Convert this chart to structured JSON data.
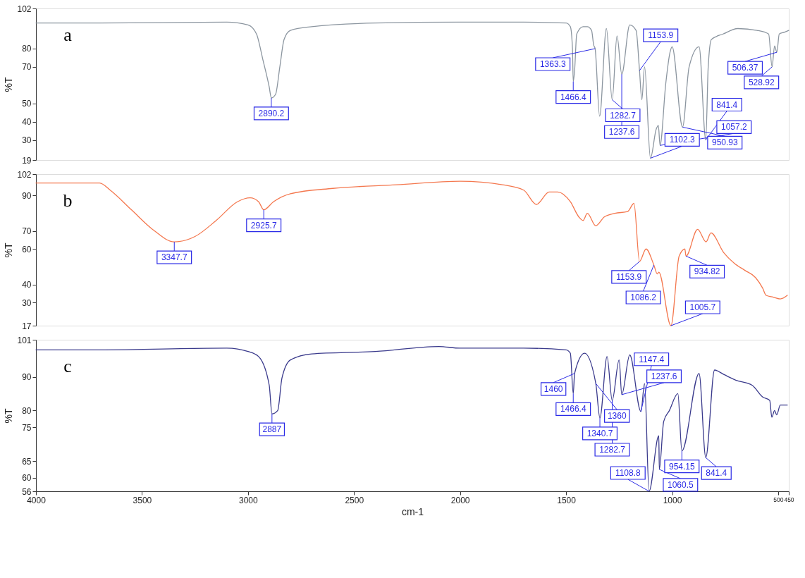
{
  "chart_data": [
    {
      "type": "line",
      "ylabel": "%T",
      "xlim": [
        4000,
        450
      ],
      "ylim": [
        19,
        102
      ],
      "yticks": [
        102,
        80,
        70,
        50,
        40,
        30,
        19
      ],
      "tick_labels": "y",
      "series": [
        {
          "color": "#8c96a0",
          "x": [
            4000,
            3700,
            3100,
            3000,
            2960,
            2930,
            2900,
            2890.2,
            2870,
            2850,
            2830,
            2800,
            2700,
            2400,
            2000,
            1700,
            1500,
            1480,
            1470,
            1466.4,
            1460,
            1450,
            1420,
            1400,
            1380,
            1370,
            1363.3,
            1342,
            1310,
            1282.7,
            1260,
            1237.6,
            1200,
            1170,
            1153.9,
            1143,
            1130,
            1102.3,
            1075,
            1065,
            1057.2,
            1030,
            1010,
            1000,
            950.93,
            920,
            873,
            841.4,
            830,
            815,
            760,
            690,
            600,
            545,
            528.92,
            517,
            506.37,
            495,
            470,
            450
          ],
          "values": [
            94,
            94,
            94.5,
            93,
            88,
            74,
            59,
            53,
            55,
            70,
            85,
            90,
            92,
            94,
            94.5,
            94.5,
            94,
            92,
            80,
            62,
            68,
            88,
            92,
            92,
            90,
            82,
            80,
            43,
            91,
            52,
            87,
            66,
            93,
            90,
            68,
            52,
            70,
            20,
            36,
            38,
            27,
            61,
            78,
            81,
            37,
            70,
            81,
            30,
            70,
            85,
            88,
            91,
            90,
            88,
            70,
            81.5,
            78,
            88,
            89,
            90
          ]
        }
      ],
      "annotations": [
        "a",
        {
          "text": "2890.2",
          "x": 2890.2,
          "y": 53
        },
        {
          "text": "1466.4",
          "x": 1466.4,
          "y": 62
        },
        {
          "text": "1363.3",
          "x": 1363.3,
          "y": 80
        },
        {
          "text": "1282.7",
          "x": 1282.7,
          "y": 52
        },
        {
          "text": "1237.6",
          "x": 1237.6,
          "y": 66
        },
        {
          "text": "1153.9",
          "x": 1153.9,
          "y": 68
        },
        {
          "text": "1102.3",
          "x": 1102.3,
          "y": 20
        },
        {
          "text": "1057.2",
          "x": 1057.2,
          "y": 27
        },
        {
          "text": "950.93",
          "x": 950.93,
          "y": 37
        },
        {
          "text": "841.4",
          "x": 841.4,
          "y": 30
        },
        {
          "text": "528.92",
          "x": 528.92,
          "y": 70
        },
        {
          "text": "506.37",
          "x": 506.37,
          "y": 78
        }
      ]
    },
    {
      "type": "line",
      "ylabel": "%T",
      "xlim": [
        4000,
        450
      ],
      "ylim": [
        17,
        102
      ],
      "yticks": [
        102,
        90,
        70,
        60,
        40,
        30,
        17
      ],
      "tick_labels": "y",
      "series": [
        {
          "color": "#f4784f",
          "x": [
            4000,
            3700,
            3650,
            3550,
            3450,
            3347.7,
            3250,
            3150,
            3050,
            2990,
            2950,
            2925.7,
            2880,
            2800,
            2600,
            2300,
            2000,
            1800,
            1700,
            1640,
            1580,
            1540,
            1480,
            1440,
            1420,
            1400,
            1360,
            1320,
            1270,
            1210,
            1180,
            1153.9,
            1123,
            1086.2,
            1070,
            1063,
            1005.7,
            967,
            940,
            934.82,
            880,
            840,
            817,
            757,
            707,
            657,
            607,
            573,
            557,
            523,
            490,
            457
          ],
          "values": [
            97,
            97,
            93,
            82,
            71,
            64,
            67,
            76,
            86.5,
            88.7,
            86.5,
            82,
            86.5,
            91,
            94,
            96,
            98,
            96,
            93,
            85,
            92,
            92,
            86.5,
            78,
            76,
            80,
            73,
            78,
            80,
            81,
            85.6,
            53,
            60,
            51,
            46,
            47,
            17,
            56,
            60,
            56,
            71,
            64,
            69,
            58,
            52,
            48,
            44,
            38,
            34,
            33,
            32,
            34
          ]
        }
      ],
      "annotations": [
        "b",
        {
          "text": "3347.7",
          "x": 3347.7,
          "y": 64
        },
        {
          "text": "2925.7",
          "x": 2925.7,
          "y": 82
        },
        {
          "text": "1153.9",
          "x": 1153.9,
          "y": 53
        },
        {
          "text": "1086.2",
          "x": 1086.2,
          "y": 51
        },
        {
          "text": "1005.7",
          "x": 1005.7,
          "y": 17
        },
        {
          "text": "934.82",
          "x": 934.82,
          "y": 56
        }
      ]
    },
    {
      "type": "line",
      "ylabel": "%T",
      "xlabel": "cm-1",
      "xlim": [
        4000,
        450
      ],
      "xticks": [
        4000,
        3500,
        3000,
        2500,
        2000,
        1500,
        1000,
        500,
        450
      ],
      "ylim": [
        56,
        101
      ],
      "yticks": [
        101,
        90,
        80,
        75,
        65,
        60,
        56
      ],
      "series": [
        {
          "color": "#3a3a8c",
          "x": [
            4000,
            3700,
            3100,
            3000,
            2950,
            2900,
            2887,
            2860,
            2840,
            2800,
            2700,
            2400,
            2100,
            2000,
            1700,
            1500,
            1480,
            1466.4,
            1460,
            1413,
            1360,
            1340.7,
            1307,
            1282.7,
            1250,
            1237.6,
            1200,
            1147.4,
            1130,
            1108.8,
            1063,
            1060.5,
            1040,
            1013,
            973,
            954.15,
            873,
            841.4,
            800,
            757,
            700,
            623,
            573,
            540,
            530,
            517,
            507,
            490,
            457
          ],
          "values": [
            98,
            98,
            98.5,
            97.5,
            96,
            87.5,
            79,
            80,
            89.6,
            95,
            96.8,
            97.5,
            99,
            98.5,
            98.5,
            98,
            97,
            85,
            91,
            97,
            88,
            77.8,
            96,
            83,
            95,
            84.7,
            96.5,
            79.7,
            88,
            56,
            72.5,
            62.5,
            76.7,
            80,
            85,
            68,
            91,
            66,
            92,
            90.7,
            89,
            87.5,
            84,
            83,
            78,
            80,
            78.7,
            81.6,
            81.6
          ]
        }
      ],
      "annotations": [
        "c",
        {
          "text": "2887",
          "x": 2887,
          "y": 79
        },
        {
          "text": "1466.4",
          "x": 1466.4,
          "y": 85
        },
        {
          "text": "1460",
          "x": 1460,
          "y": 91
        },
        {
          "text": "1360",
          "x": 1360,
          "y": 88
        },
        {
          "text": "1340.7",
          "x": 1340.7,
          "y": 77.8
        },
        {
          "text": "1282.7",
          "x": 1282.7,
          "y": 83
        },
        {
          "text": "1237.6",
          "x": 1237.6,
          "y": 84.7
        },
        {
          "text": "1147.4",
          "x": 1147.4,
          "y": 79.7
        },
        {
          "text": "1108.8",
          "x": 1108.8,
          "y": 56
        },
        {
          "text": "1060.5",
          "x": 1060.5,
          "y": 62.5
        },
        {
          "text": "954.15",
          "x": 954.15,
          "y": 68
        },
        {
          "text": "841.4",
          "x": 841.4,
          "y": 66
        }
      ]
    }
  ]
}
